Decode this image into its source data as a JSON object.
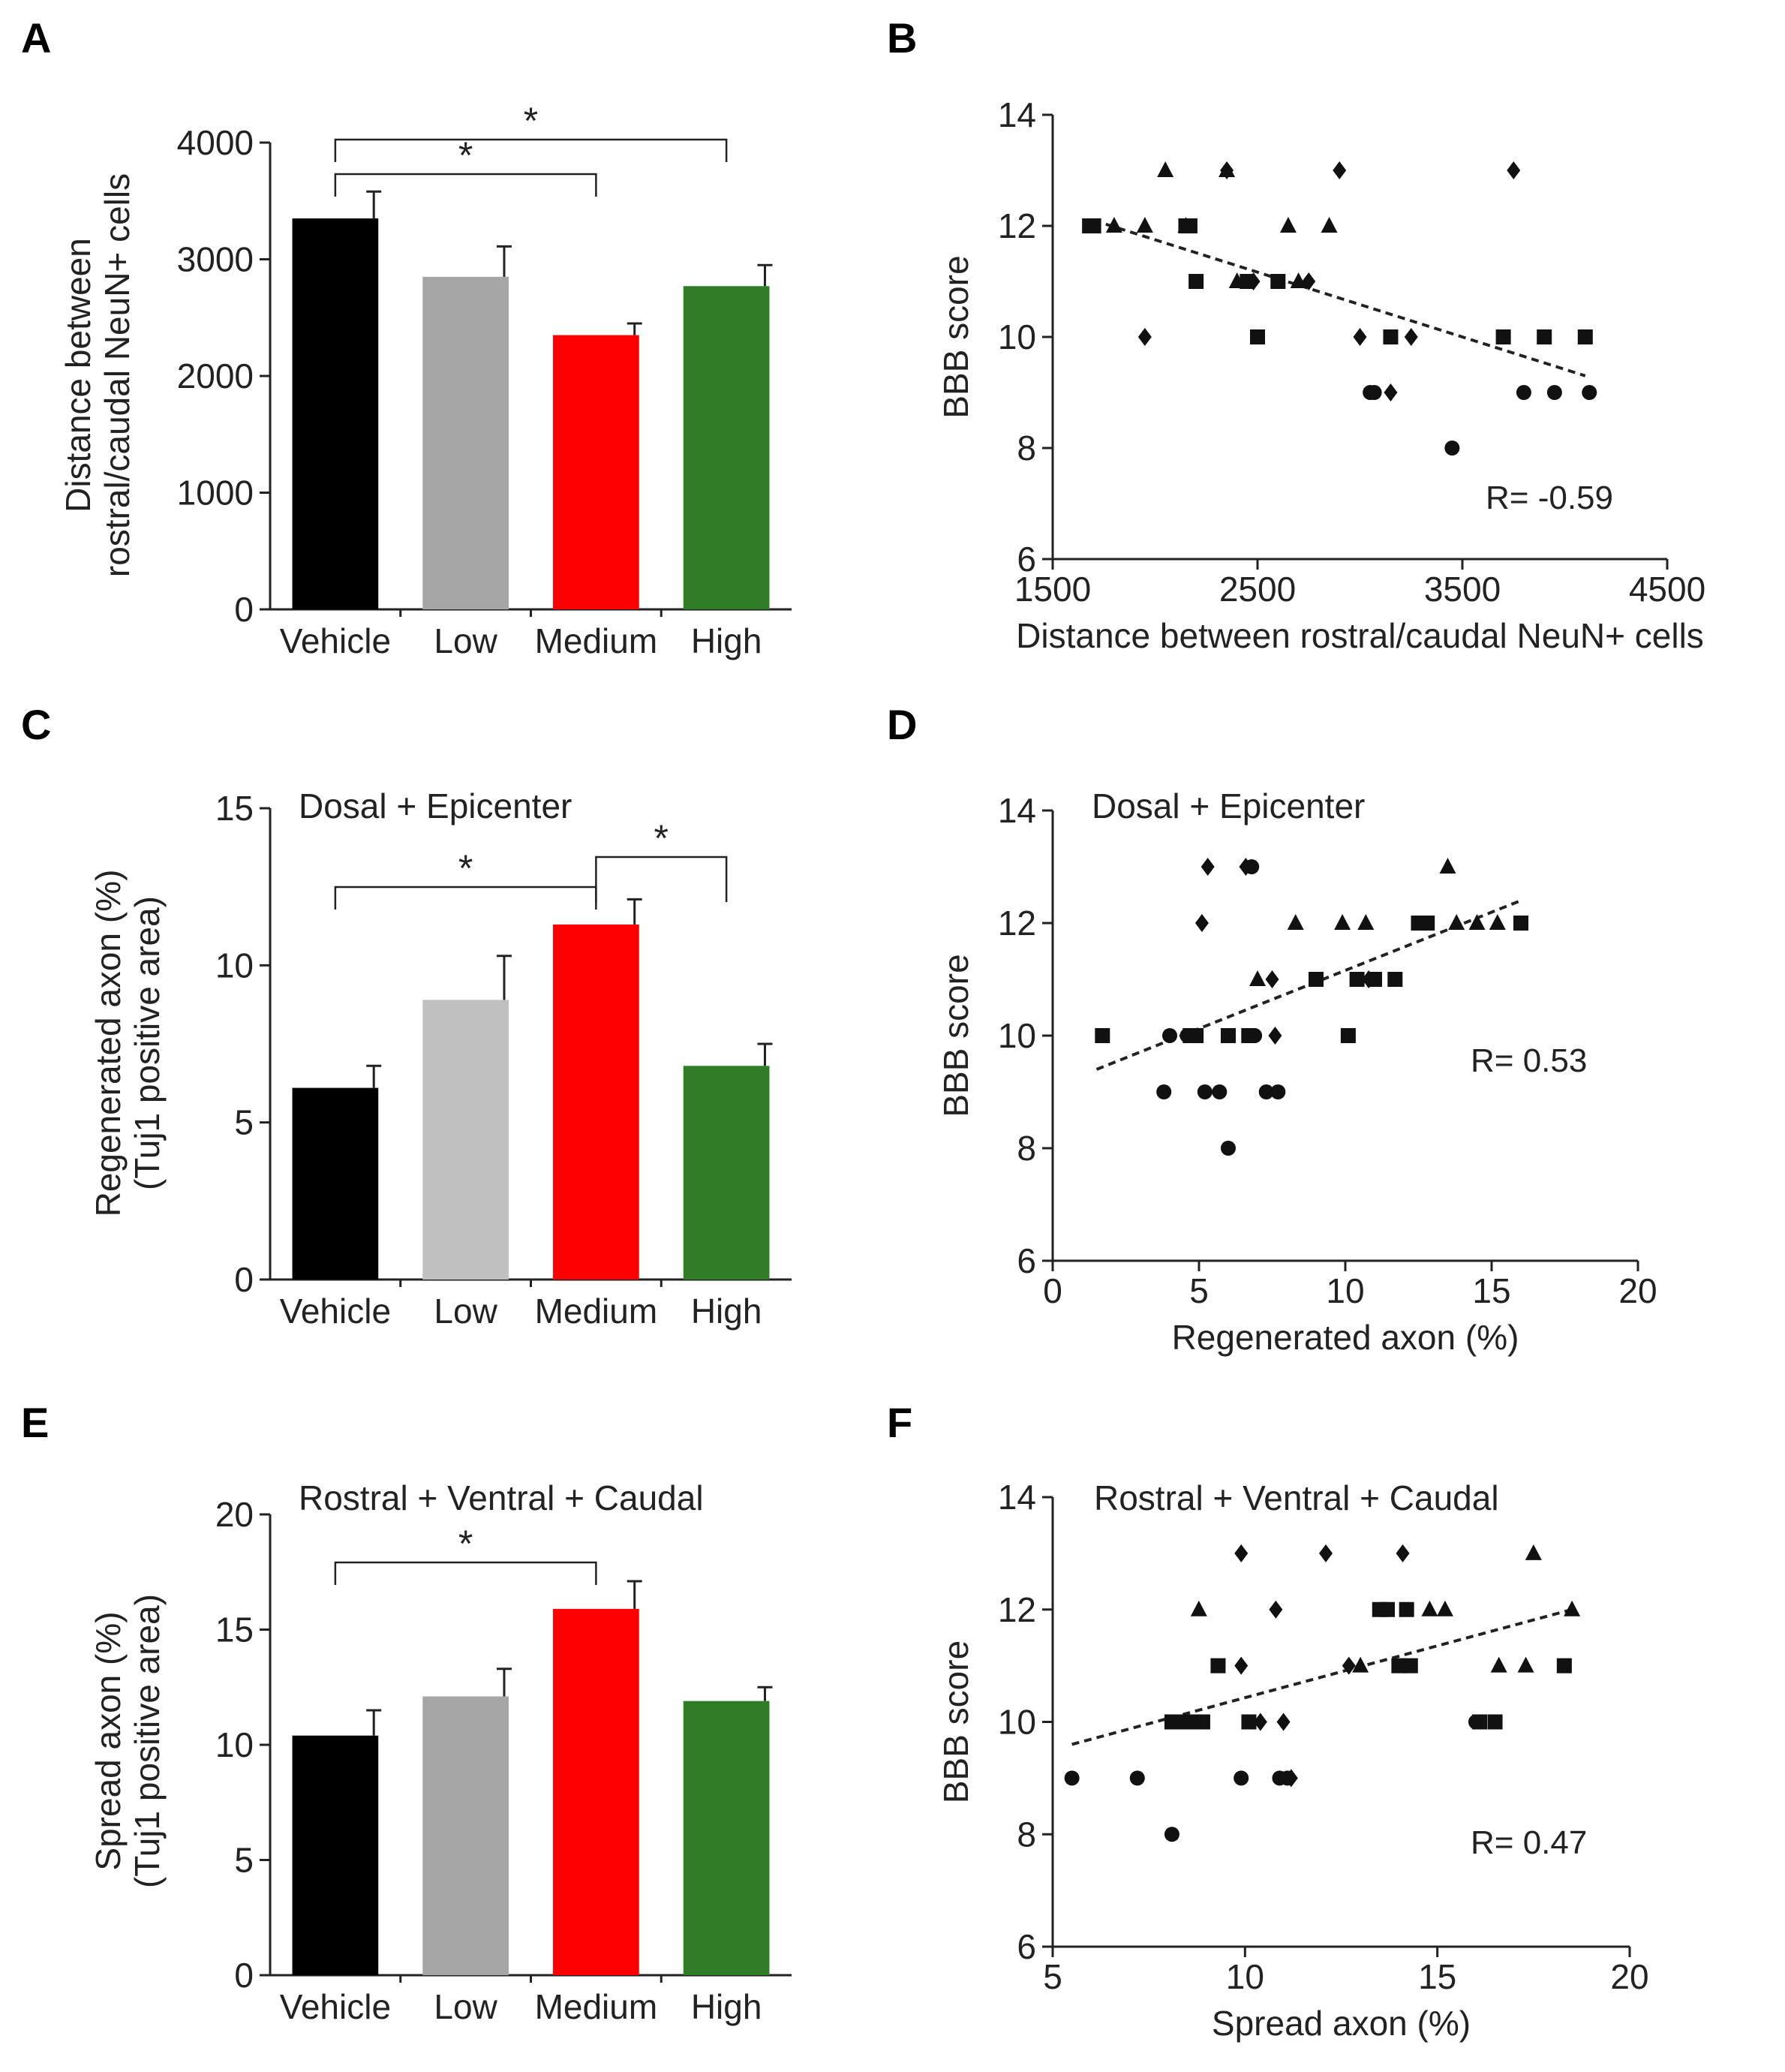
{
  "chart_data": [
    {
      "panel": "A",
      "type": "bar",
      "title": "",
      "categories": [
        "Vehicle",
        "Low",
        "Medium",
        "High"
      ],
      "values": [
        3350,
        2850,
        2350,
        2770
      ],
      "errors": [
        230,
        260,
        100,
        180
      ],
      "colors": [
        "#000000",
        "#a6a6a6",
        "#ff0000",
        "#2f7d27"
      ],
      "ylabel": [
        "Distance between",
        "rostral/caudal NeuN+ cells"
      ],
      "xlabel": "",
      "ylim": [
        0,
        4000
      ],
      "yticks": [
        "0",
        "1000",
        "2000",
        "3000",
        "4000"
      ],
      "significance": [
        {
          "from": "Vehicle",
          "to": "Medium",
          "label": "*"
        },
        {
          "from": "Vehicle",
          "to": "High",
          "label": "*"
        }
      ]
    },
    {
      "panel": "B",
      "type": "scatter",
      "title": "",
      "xlabel": "Distance between rostral/caudal NeuN+ cells",
      "ylabel": "BBB score",
      "xlim": [
        1500,
        4500
      ],
      "ylim": [
        6,
        14
      ],
      "xticks": [
        "1500",
        "2500",
        "3500",
        "4500"
      ],
      "yticks": [
        "6",
        "8",
        "10",
        "12",
        "14"
      ],
      "annotation": "R= -0.59",
      "trendline": {
        "x": [
          1700,
          4100
        ],
        "y": [
          12.1,
          9.3
        ]
      },
      "series": [
        {
          "name": "triangle",
          "x": [
            2050,
            2350,
            2650,
            2850,
            1800,
            1950,
            2150,
            2400,
            2700
          ],
          "y": [
            13,
            13,
            12,
            12,
            12,
            12,
            12,
            11,
            11
          ]
        },
        {
          "name": "square",
          "x": [
            1680,
            1700,
            2150,
            2170,
            2200,
            2450,
            2500,
            2600,
            3150,
            3700,
            3900,
            4100
          ],
          "y": [
            12,
            12,
            12,
            12,
            11,
            11,
            10,
            11,
            10,
            10,
            10,
            10
          ]
        },
        {
          "name": "diamond",
          "x": [
            1950,
            2350,
            2480,
            2750,
            2900,
            3000,
            3150,
            3250,
            3750
          ],
          "y": [
            10,
            13,
            11,
            11,
            13,
            10,
            9,
            10,
            13
          ]
        },
        {
          "name": "circle",
          "x": [
            3050,
            3070,
            3450,
            3800,
            3950,
            4120
          ],
          "y": [
            9,
            9,
            8,
            9,
            9,
            9
          ]
        }
      ]
    },
    {
      "panel": "C",
      "type": "bar",
      "title": "Dosal + Epicenter",
      "categories": [
        "Vehicle",
        "Low",
        "Medium",
        "High"
      ],
      "values": [
        6.1,
        8.9,
        11.3,
        6.8
      ],
      "errors": [
        0.7,
        1.4,
        0.8,
        0.7
      ],
      "colors": [
        "#000000",
        "#c0c0c0",
        "#ff0000",
        "#2f7d27"
      ],
      "ylabel": [
        "Regenerated axon  (%)",
        "(Tuj1 positive area)"
      ],
      "xlabel": "",
      "ylim": [
        0,
        15
      ],
      "yticks": [
        "0",
        "5",
        "10",
        "15"
      ],
      "significance": [
        {
          "from": "Vehicle",
          "to": "Medium",
          "label": "*"
        },
        {
          "from": "Medium",
          "to": "High",
          "label": "*"
        }
      ]
    },
    {
      "panel": "D",
      "type": "scatter",
      "title": "Dosal + Epicenter",
      "xlabel": "Regenerated axon (%)",
      "ylabel": "BBB score",
      "xlim": [
        0,
        20
      ],
      "ylim": [
        6,
        14
      ],
      "xticks": [
        "0",
        "5",
        "10",
        "15",
        "20"
      ],
      "yticks": [
        "6",
        "8",
        "10",
        "12",
        "14"
      ],
      "annotation": "R= 0.53",
      "trendline": {
        "x": [
          1.5,
          16
        ],
        "y": [
          9.4,
          12.4
        ]
      },
      "series": [
        {
          "name": "triangle",
          "x": [
            7,
            8.3,
            9.9,
            10.7,
            13.5,
            13.8,
            14.5,
            15.2
          ],
          "y": [
            11,
            12,
            12,
            12,
            13,
            12,
            12,
            12
          ]
        },
        {
          "name": "square",
          "x": [
            1.7,
            4.7,
            4.9,
            6,
            6.7,
            9,
            10.1,
            10.4,
            11,
            11.7,
            12.5,
            12.8,
            16
          ],
          "y": [
            10,
            10,
            10,
            10,
            10,
            11,
            10,
            11,
            11,
            11,
            12,
            12,
            12
          ]
        },
        {
          "name": "diamond",
          "x": [
            5.1,
            5.3,
            6.6,
            7.5,
            7.6,
            10.8
          ],
          "y": [
            12,
            13,
            13,
            11,
            10,
            11
          ]
        },
        {
          "name": "circle",
          "x": [
            3.8,
            4.6,
            5.2,
            5.7,
            6.8,
            6.9,
            6,
            7.3,
            7.7,
            4
          ],
          "y": [
            9,
            10,
            9,
            9,
            13,
            10,
            8,
            9,
            9,
            10
          ]
        }
      ]
    },
    {
      "panel": "E",
      "type": "bar",
      "title": "Rostral + Ventral + Caudal",
      "categories": [
        "Vehicle",
        "Low",
        "Medium",
        "High"
      ],
      "values": [
        10.4,
        12.1,
        15.9,
        11.9
      ],
      "errors": [
        1.1,
        1.2,
        1.2,
        0.6
      ],
      "colors": [
        "#000000",
        "#a6a6a6",
        "#ff0000",
        "#2f7d27"
      ],
      "ylabel": [
        "Spread axon (%)",
        "(Tuj1 positive area)"
      ],
      "xlabel": "",
      "ylim": [
        0,
        20
      ],
      "yticks": [
        "0",
        "5",
        "10",
        "15",
        "20"
      ],
      "significance": [
        {
          "from": "Vehicle",
          "to": "Medium",
          "label": "*"
        }
      ]
    },
    {
      "panel": "F",
      "type": "scatter",
      "title": "Rostral + Ventral + Caudal",
      "xlabel": "Spread axon (%)",
      "ylabel": "BBB score",
      "xlim": [
        5,
        20
      ],
      "ylim": [
        6,
        14
      ],
      "xticks": [
        "5",
        "10",
        "15",
        "20"
      ],
      "yticks": [
        "6",
        "8",
        "10",
        "12",
        "14"
      ],
      "annotation": "R= 0.47",
      "trendline": {
        "x": [
          5.5,
          18.5
        ],
        "y": [
          9.6,
          12
        ]
      },
      "series": [
        {
          "name": "triangle",
          "x": [
            8.8,
            13,
            14.8,
            15.2,
            16.6,
            17.3,
            17.5,
            18.5
          ],
          "y": [
            12,
            11,
            12,
            12,
            11,
            11,
            13,
            12
          ]
        },
        {
          "name": "square",
          "x": [
            8.1,
            8.4,
            8.6,
            8.9,
            9.3,
            10.1,
            13.5,
            13.7,
            14.2,
            14,
            14.3,
            16.1,
            16.5,
            18.3
          ],
          "y": [
            10,
            10,
            10,
            10,
            11,
            10,
            12,
            12,
            12,
            11,
            11,
            10,
            10,
            11
          ]
        },
        {
          "name": "diamond",
          "x": [
            9.9,
            9.9,
            10.4,
            10.8,
            11,
            11.2,
            12.1,
            12.7,
            14.1
          ],
          "y": [
            11,
            13,
            10,
            12,
            10,
            9,
            13,
            11,
            13
          ]
        },
        {
          "name": "circle",
          "x": [
            5.5,
            7.2,
            8.1,
            9.9,
            10.9,
            11.1,
            16
          ],
          "y": [
            9,
            9,
            8,
            9,
            9,
            9,
            10
          ]
        }
      ]
    }
  ]
}
